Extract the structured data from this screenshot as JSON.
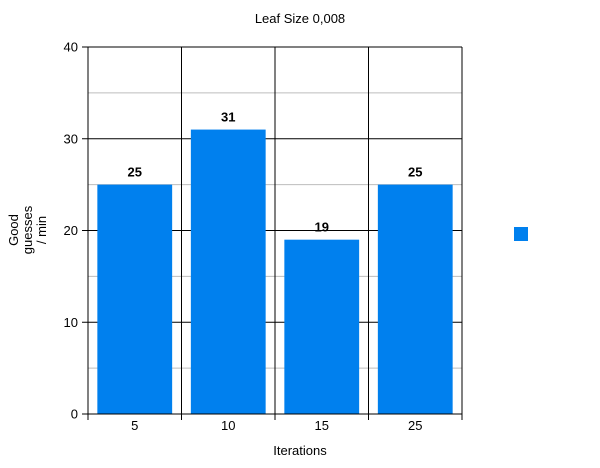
{
  "chart_data": {
    "type": "bar",
    "title": "Leaf Size 0,008",
    "xlabel": "Iterations",
    "ylabel_lines": [
      "Good",
      "guesses",
      "/ min"
    ],
    "categories": [
      "5",
      "10",
      "15",
      "25"
    ],
    "series": [
      {
        "values": [
          25,
          31,
          19,
          25
        ],
        "color": "#0080ee"
      }
    ],
    "ylim": [
      0,
      40
    ],
    "yticks": [
      0,
      10,
      20,
      30,
      40
    ],
    "minor_gridlines": [
      5,
      15,
      25,
      35
    ],
    "data_labels": true,
    "grid": true,
    "legend_position": "right",
    "legend_entries": [
      ""
    ]
  }
}
